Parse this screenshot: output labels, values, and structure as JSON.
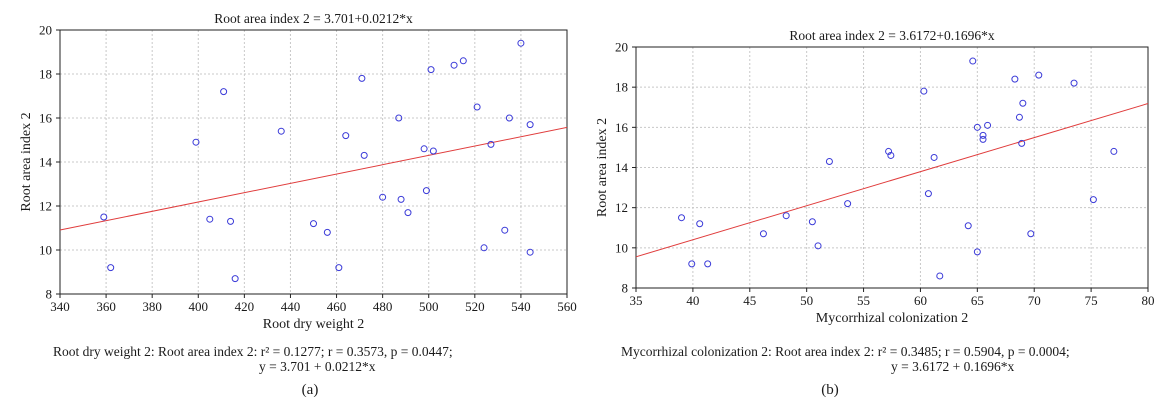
{
  "chart_data": [
    {
      "type": "scatter",
      "title": "Root area index 2 = 3.701+0.0212*x",
      "xlabel": "Root dry weight 2",
      "ylabel": "Root area index 2",
      "xlim": [
        340,
        560
      ],
      "ylim": [
        8,
        20
      ],
      "xticks": [
        340,
        360,
        380,
        400,
        420,
        440,
        460,
        480,
        500,
        520,
        540,
        560
      ],
      "yticks": [
        8,
        10,
        12,
        14,
        16,
        18,
        20
      ],
      "grid": true,
      "fit_line": {
        "intercept": 3.701,
        "slope": 0.0212,
        "color": "#e03c3c"
      },
      "marker_color": "#3a3ad8",
      "points": [
        [
          359,
          11.5
        ],
        [
          362,
          9.2
        ],
        [
          399,
          14.9
        ],
        [
          405,
          11.4
        ],
        [
          411,
          17.2
        ],
        [
          414,
          11.3
        ],
        [
          416,
          8.7
        ],
        [
          436,
          15.4
        ],
        [
          450,
          11.2
        ],
        [
          456,
          10.8
        ],
        [
          461,
          9.2
        ],
        [
          464,
          15.2
        ],
        [
          471,
          17.8
        ],
        [
          472,
          14.3
        ],
        [
          480,
          12.4
        ],
        [
          487,
          16.0
        ],
        [
          488,
          12.3
        ],
        [
          491,
          11.7
        ],
        [
          498,
          14.6
        ],
        [
          499,
          12.7
        ],
        [
          501,
          18.2
        ],
        [
          502,
          14.5
        ],
        [
          511,
          18.4
        ],
        [
          515,
          18.6
        ],
        [
          521,
          16.5
        ],
        [
          524,
          10.1
        ],
        [
          527,
          14.8
        ],
        [
          533,
          10.9
        ],
        [
          535,
          16.0
        ],
        [
          540,
          19.4
        ],
        [
          544,
          15.7
        ],
        [
          544,
          9.9
        ]
      ]
    },
    {
      "type": "scatter",
      "title": "Root area index 2 = 3.6172+0.1696*x",
      "xlabel": "Mycorrhizal colonization 2",
      "ylabel": "Root area index 2",
      "xlim": [
        35,
        80
      ],
      "ylim": [
        8,
        20
      ],
      "xticks": [
        35,
        40,
        45,
        50,
        55,
        60,
        65,
        70,
        75,
        80
      ],
      "yticks": [
        8,
        10,
        12,
        14,
        16,
        18,
        20
      ],
      "grid": true,
      "fit_line": {
        "intercept": 3.6172,
        "slope": 0.1696,
        "color": "#e03c3c"
      },
      "marker_color": "#3a3ad8",
      "points": [
        [
          39.0,
          11.5
        ],
        [
          39.9,
          9.2
        ],
        [
          40.6,
          11.2
        ],
        [
          41.3,
          9.2
        ],
        [
          46.2,
          10.7
        ],
        [
          48.2,
          11.6
        ],
        [
          50.5,
          11.3
        ],
        [
          51.0,
          10.1
        ],
        [
          52.0,
          14.3
        ],
        [
          53.6,
          12.2
        ],
        [
          57.2,
          14.8
        ],
        [
          57.4,
          14.6
        ],
        [
          60.3,
          17.8
        ],
        [
          60.7,
          12.7
        ],
        [
          61.2,
          14.5
        ],
        [
          61.7,
          8.6
        ],
        [
          64.2,
          11.1
        ],
        [
          64.6,
          19.3
        ],
        [
          65.0,
          9.8
        ],
        [
          65.0,
          16.0
        ],
        [
          65.5,
          15.6
        ],
        [
          65.5,
          15.4
        ],
        [
          65.9,
          16.1
        ],
        [
          68.3,
          18.4
        ],
        [
          68.7,
          16.5
        ],
        [
          68.9,
          15.2
        ],
        [
          69.0,
          17.2
        ],
        [
          69.7,
          10.7
        ],
        [
          70.4,
          18.6
        ],
        [
          73.5,
          18.2
        ],
        [
          75.2,
          12.4
        ],
        [
          77.0,
          14.8
        ]
      ]
    }
  ],
  "stats": {
    "a": {
      "line1": "Root dry weight 2: Root area index 2: r² = 0.1277;  r = 0.3573, p = 0.0447;",
      "line2": "y = 3.701 + 0.0212*x"
    },
    "b": {
      "line1": "Mycorrhizal colonization 2: Root area index 2:  r² = 0.3485;  r = 0.5904, p = 0.0004;",
      "line2": "y = 3.6172 + 0.1696*x"
    }
  },
  "labels": {
    "a": "(a)",
    "b": "(b)"
  }
}
